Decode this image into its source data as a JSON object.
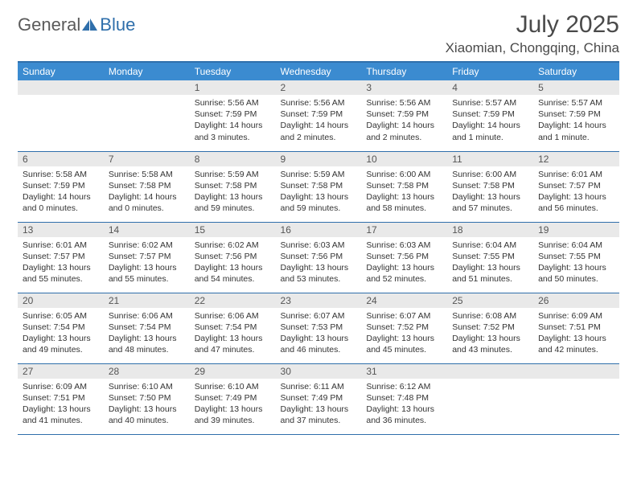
{
  "logo": {
    "part1": "General",
    "part2": "Blue"
  },
  "title": "July 2025",
  "location": "Xiaomian, Chongqing, China",
  "colors": {
    "header_bg": "#3b8bd0",
    "header_text": "#ffffff",
    "rule": "#2f6fab",
    "daynum_bg": "#e9e9e9",
    "text": "#333333",
    "logo_gray": "#5a5a5a",
    "logo_blue": "#2f6fab"
  },
  "calendar": {
    "day_headers": [
      "Sunday",
      "Monday",
      "Tuesday",
      "Wednesday",
      "Thursday",
      "Friday",
      "Saturday"
    ],
    "first_weekday_index": 2,
    "days": [
      {
        "n": 1,
        "sunrise": "5:56 AM",
        "sunset": "7:59 PM",
        "daylight": "14 hours and 3 minutes."
      },
      {
        "n": 2,
        "sunrise": "5:56 AM",
        "sunset": "7:59 PM",
        "daylight": "14 hours and 2 minutes."
      },
      {
        "n": 3,
        "sunrise": "5:56 AM",
        "sunset": "7:59 PM",
        "daylight": "14 hours and 2 minutes."
      },
      {
        "n": 4,
        "sunrise": "5:57 AM",
        "sunset": "7:59 PM",
        "daylight": "14 hours and 1 minute."
      },
      {
        "n": 5,
        "sunrise": "5:57 AM",
        "sunset": "7:59 PM",
        "daylight": "14 hours and 1 minute."
      },
      {
        "n": 6,
        "sunrise": "5:58 AM",
        "sunset": "7:59 PM",
        "daylight": "14 hours and 0 minutes."
      },
      {
        "n": 7,
        "sunrise": "5:58 AM",
        "sunset": "7:58 PM",
        "daylight": "14 hours and 0 minutes."
      },
      {
        "n": 8,
        "sunrise": "5:59 AM",
        "sunset": "7:58 PM",
        "daylight": "13 hours and 59 minutes."
      },
      {
        "n": 9,
        "sunrise": "5:59 AM",
        "sunset": "7:58 PM",
        "daylight": "13 hours and 59 minutes."
      },
      {
        "n": 10,
        "sunrise": "6:00 AM",
        "sunset": "7:58 PM",
        "daylight": "13 hours and 58 minutes."
      },
      {
        "n": 11,
        "sunrise": "6:00 AM",
        "sunset": "7:58 PM",
        "daylight": "13 hours and 57 minutes."
      },
      {
        "n": 12,
        "sunrise": "6:01 AM",
        "sunset": "7:57 PM",
        "daylight": "13 hours and 56 minutes."
      },
      {
        "n": 13,
        "sunrise": "6:01 AM",
        "sunset": "7:57 PM",
        "daylight": "13 hours and 55 minutes."
      },
      {
        "n": 14,
        "sunrise": "6:02 AM",
        "sunset": "7:57 PM",
        "daylight": "13 hours and 55 minutes."
      },
      {
        "n": 15,
        "sunrise": "6:02 AM",
        "sunset": "7:56 PM",
        "daylight": "13 hours and 54 minutes."
      },
      {
        "n": 16,
        "sunrise": "6:03 AM",
        "sunset": "7:56 PM",
        "daylight": "13 hours and 53 minutes."
      },
      {
        "n": 17,
        "sunrise": "6:03 AM",
        "sunset": "7:56 PM",
        "daylight": "13 hours and 52 minutes."
      },
      {
        "n": 18,
        "sunrise": "6:04 AM",
        "sunset": "7:55 PM",
        "daylight": "13 hours and 51 minutes."
      },
      {
        "n": 19,
        "sunrise": "6:04 AM",
        "sunset": "7:55 PM",
        "daylight": "13 hours and 50 minutes."
      },
      {
        "n": 20,
        "sunrise": "6:05 AM",
        "sunset": "7:54 PM",
        "daylight": "13 hours and 49 minutes."
      },
      {
        "n": 21,
        "sunrise": "6:06 AM",
        "sunset": "7:54 PM",
        "daylight": "13 hours and 48 minutes."
      },
      {
        "n": 22,
        "sunrise": "6:06 AM",
        "sunset": "7:54 PM",
        "daylight": "13 hours and 47 minutes."
      },
      {
        "n": 23,
        "sunrise": "6:07 AM",
        "sunset": "7:53 PM",
        "daylight": "13 hours and 46 minutes."
      },
      {
        "n": 24,
        "sunrise": "6:07 AM",
        "sunset": "7:52 PM",
        "daylight": "13 hours and 45 minutes."
      },
      {
        "n": 25,
        "sunrise": "6:08 AM",
        "sunset": "7:52 PM",
        "daylight": "13 hours and 43 minutes."
      },
      {
        "n": 26,
        "sunrise": "6:09 AM",
        "sunset": "7:51 PM",
        "daylight": "13 hours and 42 minutes."
      },
      {
        "n": 27,
        "sunrise": "6:09 AM",
        "sunset": "7:51 PM",
        "daylight": "13 hours and 41 minutes."
      },
      {
        "n": 28,
        "sunrise": "6:10 AM",
        "sunset": "7:50 PM",
        "daylight": "13 hours and 40 minutes."
      },
      {
        "n": 29,
        "sunrise": "6:10 AM",
        "sunset": "7:49 PM",
        "daylight": "13 hours and 39 minutes."
      },
      {
        "n": 30,
        "sunrise": "6:11 AM",
        "sunset": "7:49 PM",
        "daylight": "13 hours and 37 minutes."
      },
      {
        "n": 31,
        "sunrise": "6:12 AM",
        "sunset": "7:48 PM",
        "daylight": "13 hours and 36 minutes."
      }
    ]
  },
  "typography": {
    "title_fontsize": 30,
    "location_fontsize": 17,
    "dayheader_fontsize": 12,
    "daynum_fontsize": 12,
    "body_fontsize": 10.5
  }
}
